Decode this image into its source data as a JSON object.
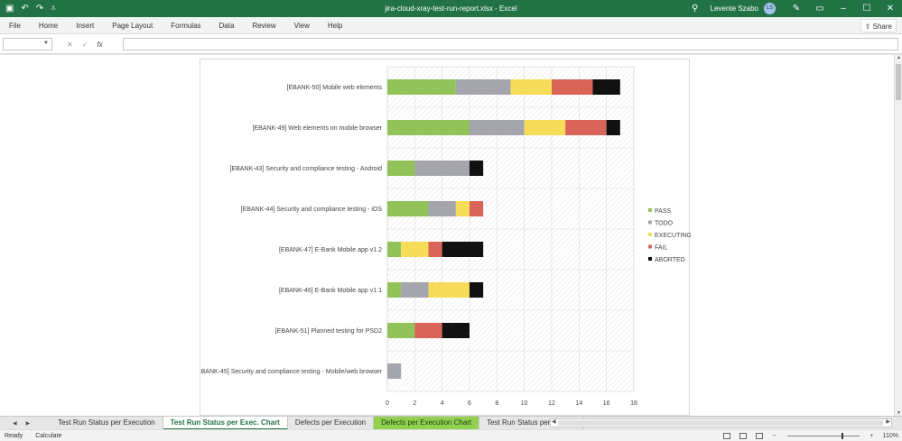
{
  "window": {
    "title": "jira-cloud-xray-test-run-report.xlsx  -  Excel",
    "user": "Levente Szabo",
    "user_initials": "LS",
    "accent_color": "#217346"
  },
  "menu": {
    "items": [
      "File",
      "Home",
      "Insert",
      "Page Layout",
      "Formulas",
      "Data",
      "Review",
      "View",
      "Help"
    ],
    "share_label": "Share"
  },
  "formula_bar": {
    "name_box": "",
    "fx_label": "fx",
    "formula": ""
  },
  "chart_data": {
    "type": "bar",
    "orientation": "horizontal",
    "stacked": true,
    "categories": [
      "[EBANK-50] Mobile web elements",
      "[EBANK-49] Web elements on mobile browser",
      "[EBANK-43] Security and compliance testing - Android",
      "[EBANK-44] Security and compliance testing - iOS",
      "[EBANK-47] E-Bank Mobile app v1.2",
      "[EBANK-46] E-Bank Mobile app v1.1",
      "[EBANK-51] Planned testing for PSD2",
      "[EBANK-45] Security and compliance testing - Mobile/web browser"
    ],
    "series": [
      {
        "name": "PASS",
        "color": "#92c35a",
        "values": [
          5,
          6,
          2,
          3,
          1,
          1,
          2,
          0
        ]
      },
      {
        "name": "TODO",
        "color": "#a5a5ad",
        "values": [
          4,
          4,
          4,
          2,
          0,
          2,
          0,
          1
        ]
      },
      {
        "name": "EXECUTING",
        "color": "#f7dc5a",
        "values": [
          3,
          3,
          0,
          1,
          2,
          3,
          0,
          0
        ]
      },
      {
        "name": "FAIL",
        "color": "#d9645a",
        "values": [
          3,
          3,
          0,
          1,
          1,
          0,
          2,
          0
        ]
      },
      {
        "name": "ABORTED",
        "color": "#111111",
        "values": [
          2,
          1,
          1,
          0,
          3,
          1,
          2,
          0
        ]
      }
    ],
    "xlim": [
      0,
      18
    ],
    "xticks": [
      "0",
      "2",
      "4",
      "6",
      "8",
      "10",
      "12",
      "14",
      "16",
      "18"
    ],
    "grid": true,
    "legend": "right"
  },
  "sheet_tabs": {
    "nav_prev": "◀",
    "nav_next": "▶",
    "tabs": [
      {
        "label": "Test Run Status per Execution",
        "state": "normal"
      },
      {
        "label": "Test Run Status per Exec. Chart",
        "state": "active"
      },
      {
        "label": "Defects per Execution",
        "state": "normal"
      },
      {
        "label": "Defects per Execution Chart",
        "state": "colored"
      },
      {
        "label": "Test Run Status per Version",
        "state": "clipped"
      }
    ],
    "add_label": "⊕"
  },
  "status": {
    "ready": "Ready",
    "calculate": "Calculate",
    "zoom": "110%",
    "zoom_minus": "−",
    "zoom_plus": "+"
  }
}
